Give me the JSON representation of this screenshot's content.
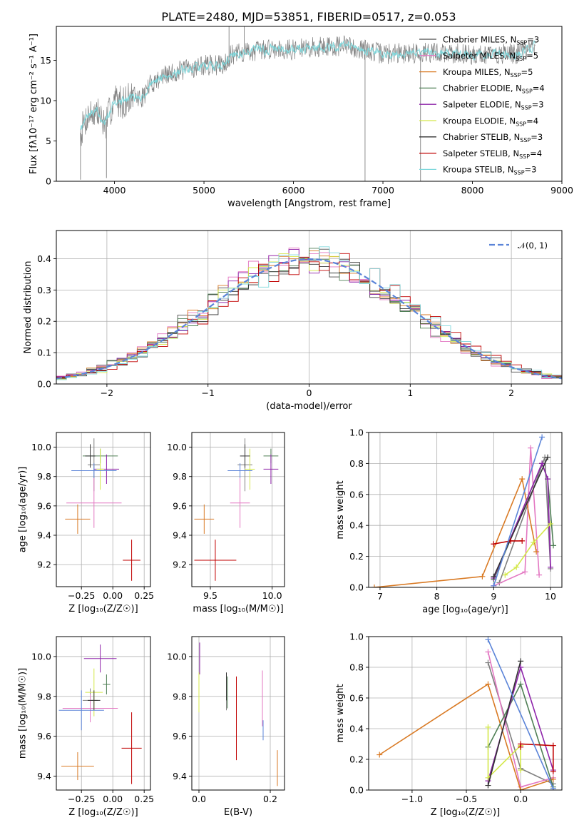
{
  "figure": {
    "title": "PLATE=2480, MJD=53851, FIBERID=0517, z=0.053"
  },
  "models": [
    {
      "name": "Chabrier MILES",
      "nssp": "3",
      "color": "#4a4a4a"
    },
    {
      "name": "Salpeter MILES",
      "nssp": "5",
      "color": "#e377c2"
    },
    {
      "name": "Kroupa MILES",
      "nssp": "5",
      "color": "#d97a24"
    },
    {
      "name": "Chabrier ELODIE",
      "nssp": "4",
      "color": "#4f7f55"
    },
    {
      "name": "Salpeter ELODIE",
      "nssp": "3",
      "color": "#8e24aa"
    },
    {
      "name": "Kroupa ELODIE",
      "nssp": "4",
      "color": "#d4e84a"
    },
    {
      "name": "Chabrier STELIB",
      "nssp": "3",
      "color": "#333333"
    },
    {
      "name": "Salpeter STELIB",
      "nssp": "4",
      "color": "#c00000"
    },
    {
      "name": "Kroupa STELIB",
      "nssp": "3",
      "color": "#7fd8dc"
    }
  ],
  "chart_data": [
    {
      "id": "spectrum",
      "type": "line",
      "xlabel": "wavelength [Angstrom, rest frame]",
      "ylabel": "Flux [fλ10⁻¹⁷ erg cm⁻² s⁻¹ A⁻¹]",
      "xlim": [
        3350,
        9000
      ],
      "ylim": [
        0,
        19.2
      ],
      "xticks": [
        "4000",
        "5000",
        "6000",
        "7000",
        "8000",
        "9000"
      ],
      "yticks": [
        "0",
        "5",
        "10",
        "15"
      ],
      "data_color": "#808080",
      "model_color": "#7fd8dc",
      "nssp_prefix": "N",
      "nssp_sub": "SSP",
      "legend_loc": "right",
      "continuum": [
        [
          3620,
          6.0
        ],
        [
          3700,
          8.2
        ],
        [
          3800,
          8.6
        ],
        [
          3900,
          7.0
        ],
        [
          3960,
          9.0
        ],
        [
          4000,
          10.2
        ],
        [
          4100,
          9.8
        ],
        [
          4200,
          10.5
        ],
        [
          4300,
          10.2
        ],
        [
          4400,
          12.0
        ],
        [
          4500,
          12.8
        ],
        [
          4700,
          13.6
        ],
        [
          5000,
          14.4
        ],
        [
          5200,
          14.4
        ],
        [
          5300,
          15.6
        ],
        [
          5500,
          16.1
        ],
        [
          5800,
          16.5
        ],
        [
          6000,
          16.3
        ],
        [
          6300,
          16.7
        ],
        [
          6600,
          16.8
        ],
        [
          7000,
          15.8
        ],
        [
          7500,
          16.0
        ],
        [
          8000,
          15.7
        ],
        [
          8500,
          15.8
        ],
        [
          8700,
          16.8
        ]
      ],
      "spikes": [
        [
          3620,
          0.2
        ],
        [
          3910,
          0.4
        ],
        [
          5280,
          19.2
        ],
        [
          5450,
          19.2
        ],
        [
          6800,
          0.0
        ],
        [
          7420,
          0.0
        ]
      ]
    },
    {
      "id": "residuals",
      "type": "line",
      "xlabel": "(data-model)/error",
      "ylabel": "Normed distribution",
      "xlim": [
        -2.5,
        2.5
      ],
      "ylim": [
        0,
        0.49
      ],
      "xticks": [
        "−2",
        "−1",
        "0",
        "1",
        "2"
      ],
      "yticks": [
        "0.0",
        "0.1",
        "0.2",
        "0.3",
        "0.4"
      ],
      "grid": true,
      "legend": "𝒩(0, 1)",
      "legend_loc": "top-right",
      "bin_width": 0.1,
      "gauss_color": "#5b84d8"
    },
    {
      "id": "age-vs-Z",
      "type": "scatter",
      "xlabel": "Z [log₁₀(Z/Z☉)]",
      "ylabel": "age  [log₁₀(age/yr)]",
      "xlim": [
        -0.45,
        0.3
      ],
      "ylim": [
        9.05,
        10.1
      ],
      "xticks": [
        "−0.25",
        "0.00",
        "0.25"
      ],
      "yticks": [
        "9.2",
        "9.4",
        "9.6",
        "9.8",
        "10.0"
      ],
      "grid": true,
      "points": [
        {
          "c": "#7f7f7f",
          "x": -0.15,
          "dx": 0.05,
          "y": 9.88,
          "dy": 0.18
        },
        {
          "c": "#e377c2",
          "x": -0.15,
          "dx": 0.22,
          "y": 9.62,
          "dy": 0.17
        },
        {
          "c": "#d97a24",
          "x": -0.28,
          "dx": 0.1,
          "y": 9.51,
          "dy": 0.1
        },
        {
          "c": "#4f7f55",
          "x": -0.1,
          "dx": 0.14,
          "y": 9.94,
          "dy": 0.05
        },
        {
          "c": "#8e24aa",
          "x": -0.05,
          "dx": 0.1,
          "y": 9.85,
          "dy": 0.1
        },
        {
          "c": "#d4e84a",
          "x": -0.1,
          "dx": 0.03,
          "y": 9.85,
          "dy": 0.14
        },
        {
          "c": "#333333",
          "x": -0.18,
          "dx": 0.04,
          "y": 9.94,
          "dy": 0.08
        },
        {
          "c": "#c00000",
          "x": 0.15,
          "dx": 0.07,
          "y": 9.23,
          "dy": 0.14
        },
        {
          "c": "#5b84d8",
          "x": -0.15,
          "dx": 0.18,
          "y": 9.84,
          "dy": 0.05
        }
      ]
    },
    {
      "id": "age-vs-mass",
      "type": "scatter",
      "xlabel": "mass [log₁₀(M/M☉)]",
      "ylabel": "",
      "xlim": [
        9.35,
        10.1
      ],
      "ylim": [
        9.05,
        10.1
      ],
      "xticks": [
        "9.5",
        "10.0"
      ],
      "yticks": [
        "9.2",
        "9.4",
        "9.6",
        "9.8",
        "10.0"
      ],
      "grid": true,
      "points": [
        {
          "c": "#7f7f7f",
          "x": 9.78,
          "dx": 0.06,
          "y": 9.88,
          "dy": 0.18
        },
        {
          "c": "#e377c2",
          "x": 9.74,
          "dx": 0.08,
          "y": 9.62,
          "dy": 0.17
        },
        {
          "c": "#d97a24",
          "x": 9.45,
          "dx": 0.08,
          "y": 9.51,
          "dy": 0.1
        },
        {
          "c": "#4f7f55",
          "x": 9.99,
          "dx": 0.06,
          "y": 9.94,
          "dy": 0.05
        },
        {
          "c": "#8e24aa",
          "x": 9.99,
          "dx": 0.06,
          "y": 9.85,
          "dy": 0.1
        },
        {
          "c": "#d4e84a",
          "x": 9.82,
          "dx": 0.04,
          "y": 9.85,
          "dy": 0.14
        },
        {
          "c": "#333333",
          "x": 9.78,
          "dx": 0.04,
          "y": 9.94,
          "dy": 0.08
        },
        {
          "c": "#c00000",
          "x": 9.54,
          "dx": 0.17,
          "y": 9.23,
          "dy": 0.14
        },
        {
          "c": "#5b84d8",
          "x": 9.74,
          "dx": 0.1,
          "y": 9.84,
          "dy": 0.05
        }
      ]
    },
    {
      "id": "weight-vs-age",
      "type": "line",
      "xlabel": "age  [log₁₀(age/yr)]",
      "ylabel": "mass weight",
      "xlim": [
        6.8,
        10.2
      ],
      "ylim": [
        0,
        1.0
      ],
      "xticks": [
        "7",
        "8",
        "9",
        "10"
      ],
      "yticks": [
        "0.0",
        "0.2",
        "0.4",
        "0.6",
        "0.8",
        "1.0"
      ],
      "grid": true,
      "series": [
        {
          "c": "#7f7f7f",
          "pts": [
            [
              9.1,
              0.03
            ],
            [
              9.9,
              0.84
            ],
            [
              10.0,
              0.12
            ]
          ]
        },
        {
          "c": "#e377c2",
          "pts": [
            [
              9.0,
              0.01
            ],
            [
              9.55,
              0.1
            ],
            [
              9.65,
              0.9
            ],
            [
              9.8,
              0.08
            ]
          ]
        },
        {
          "c": "#d97a24",
          "pts": [
            [
              6.9,
              0.0
            ],
            [
              8.8,
              0.07
            ],
            [
              9.5,
              0.7
            ],
            [
              9.75,
              0.23
            ]
          ]
        },
        {
          "c": "#4f7f55",
          "pts": [
            [
              9.0,
              0.05
            ],
            [
              9.85,
              0.8
            ],
            [
              9.95,
              0.7
            ],
            [
              10.05,
              0.27
            ]
          ]
        },
        {
          "c": "#8e24aa",
          "pts": [
            [
              9.0,
              0.06
            ],
            [
              9.85,
              0.8
            ],
            [
              9.95,
              0.7
            ],
            [
              10.0,
              0.13
            ]
          ]
        },
        {
          "c": "#d4e84a",
          "pts": [
            [
              9.2,
              0.08
            ],
            [
              9.4,
              0.13
            ],
            [
              9.7,
              0.29
            ],
            [
              10.0,
              0.41
            ]
          ]
        },
        {
          "c": "#333333",
          "pts": [
            [
              9.0,
              0.07
            ],
            [
              9.95,
              0.84
            ]
          ]
        },
        {
          "c": "#c00000",
          "pts": [
            [
              9.0,
              0.28
            ],
            [
              9.3,
              0.3
            ],
            [
              9.5,
              0.3
            ]
          ]
        },
        {
          "c": "#5b84d8",
          "pts": [
            [
              9.0,
              0.01
            ],
            [
              9.85,
              0.97
            ]
          ]
        }
      ]
    },
    {
      "id": "mass-vs-Z",
      "type": "scatter",
      "xlabel": "Z [log₁₀(Z/Z☉)]",
      "ylabel": "mass [log₁₀(M/M☉)]",
      "xlim": [
        -0.45,
        0.3
      ],
      "ylim": [
        9.33,
        10.1
      ],
      "xticks": [
        "−0.25",
        "0.00",
        "0.25"
      ],
      "yticks": [
        "9.4",
        "9.6",
        "9.8",
        "10.0"
      ],
      "grid": true,
      "points": [
        {
          "c": "#7f7f7f",
          "x": -0.18,
          "dx": 0.06,
          "y": 9.78,
          "dy": 0.06
        },
        {
          "c": "#e377c2",
          "x": -0.18,
          "dx": 0.22,
          "y": 9.74,
          "dy": 0.07
        },
        {
          "c": "#d97a24",
          "x": -0.28,
          "dx": 0.13,
          "y": 9.45,
          "dy": 0.07
        },
        {
          "c": "#4f7f55",
          "x": -0.05,
          "dx": 0.03,
          "y": 9.86,
          "dy": 0.05
        },
        {
          "c": "#8e24aa",
          "x": -0.1,
          "dx": 0.13,
          "y": 9.99,
          "dy": 0.07
        },
        {
          "c": "#d4e84a",
          "x": -0.15,
          "dx": 0.07,
          "y": 9.82,
          "dy": 0.12
        },
        {
          "c": "#333333",
          "x": -0.15,
          "dx": 0.05,
          "y": 9.78,
          "dy": 0.05
        },
        {
          "c": "#c00000",
          "x": 0.15,
          "dx": 0.08,
          "y": 9.54,
          "dy": 0.18
        },
        {
          "c": "#5b84d8",
          "x": -0.25,
          "dx": 0.18,
          "y": 9.73,
          "dy": 0.1
        }
      ]
    },
    {
      "id": "mass-vs-ebv",
      "type": "scatter",
      "xlabel": "E(B-V)",
      "ylabel": "",
      "xlim": [
        -0.02,
        0.24
      ],
      "ylim": [
        9.33,
        10.1
      ],
      "xticks": [
        "0.0",
        "0.2"
      ],
      "yticks": [
        "9.4",
        "9.6",
        "9.8",
        "10.0"
      ],
      "grid": true,
      "points": [
        {
          "c": "#7f7f7f",
          "x": 0.077,
          "dx": 0,
          "y": 9.82,
          "dy": 0.09
        },
        {
          "c": "#e377c2",
          "x": 0.178,
          "dx": 0,
          "y": 9.79,
          "dy": 0.14
        },
        {
          "c": "#d97a24",
          "x": 0.22,
          "dx": 0,
          "y": 9.44,
          "dy": 0.09
        },
        {
          "c": "#4f7f55",
          "x": 0.08,
          "dx": 0,
          "y": 9.82,
          "dy": 0.08
        },
        {
          "c": "#8e24aa",
          "x": 0.002,
          "dx": 0,
          "y": 9.99,
          "dy": 0.08
        },
        {
          "c": "#d4e84a",
          "x": 0.0,
          "dx": 0,
          "y": 9.82,
          "dy": 0.1
        },
        {
          "c": "#333333",
          "x": 0.077,
          "dx": 0,
          "y": 9.85,
          "dy": 0.07
        },
        {
          "c": "#c00000",
          "x": 0.105,
          "dx": 0,
          "y": 9.69,
          "dy": 0.21
        },
        {
          "c": "#5b84d8",
          "x": 0.18,
          "dx": 0,
          "y": 9.63,
          "dy": 0.05
        }
      ]
    },
    {
      "id": "weight-vs-Z",
      "type": "line",
      "xlabel": "Z [log₁₀(Z/Z☉)]",
      "ylabel": "mass weight",
      "xlim": [
        -1.4,
        0.38
      ],
      "ylim": [
        0,
        1.0
      ],
      "xticks": [
        "−1.0",
        "−0.5",
        "0.0"
      ],
      "yticks": [
        "0.0",
        "0.2",
        "0.4",
        "0.6",
        "0.8",
        "1.0"
      ],
      "grid": true,
      "series": [
        {
          "c": "#7f7f7f",
          "pts": [
            [
              -0.3,
              0.83
            ],
            [
              0.0,
              0.14
            ],
            [
              0.3,
              0.04
            ]
          ]
        },
        {
          "c": "#e377c2",
          "pts": [
            [
              -0.3,
              0.9
            ],
            [
              0.0,
              0.02
            ],
            [
              0.3,
              0.08
            ]
          ]
        },
        {
          "c": "#d97a24",
          "pts": [
            [
              -1.3,
              0.23
            ],
            [
              -0.3,
              0.69
            ],
            [
              0.0,
              0.0
            ],
            [
              0.3,
              0.07
            ]
          ]
        },
        {
          "c": "#4f7f55",
          "pts": [
            [
              -0.3,
              0.28
            ],
            [
              0.0,
              0.69
            ],
            [
              0.3,
              0.02
            ]
          ]
        },
        {
          "c": "#8e24aa",
          "pts": [
            [
              -0.3,
              0.06
            ],
            [
              0.0,
              0.8
            ],
            [
              0.3,
              0.13
            ]
          ]
        },
        {
          "c": "#d4e84a",
          "pts": [
            [
              -0.3,
              0.41
            ],
            [
              -0.3,
              0.08
            ],
            [
              0.0,
              0.29
            ],
            [
              0.0,
              0.13
            ]
          ]
        },
        {
          "c": "#333333",
          "pts": [
            [
              -0.3,
              0.03
            ],
            [
              0.0,
              0.84
            ]
          ]
        },
        {
          "c": "#c00000",
          "pts": [
            [
              0.0,
              0.28
            ],
            [
              0.0,
              0.3
            ],
            [
              0.3,
              0.29
            ],
            [
              0.3,
              0.12
            ]
          ]
        },
        {
          "c": "#5b84d8",
          "pts": [
            [
              -0.3,
              0.98
            ],
            [
              0.3,
              0.01
            ]
          ]
        }
      ]
    }
  ]
}
